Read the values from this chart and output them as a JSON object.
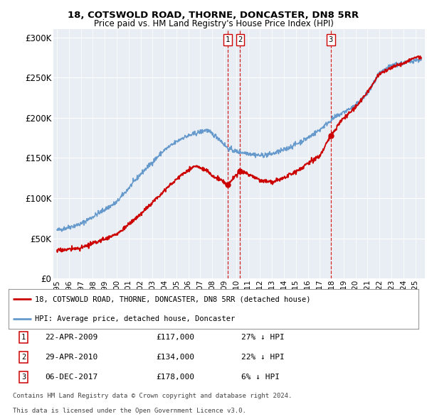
{
  "title": "18, COTSWOLD ROAD, THORNE, DONCASTER, DN8 5RR",
  "subtitle": "Price paid vs. HM Land Registry's House Price Index (HPI)",
  "ylabel_ticks": [
    "£0",
    "£50K",
    "£100K",
    "£150K",
    "£200K",
    "£250K",
    "£300K"
  ],
  "ytick_values": [
    0,
    50000,
    100000,
    150000,
    200000,
    250000,
    300000
  ],
  "ylim": [
    0,
    310000
  ],
  "xlim_start": 1994.7,
  "xlim_end": 2025.8,
  "transactions": [
    {
      "num": 1,
      "date": "22-APR-2009",
      "price": 117000,
      "year": 2009.31,
      "pct": "27%",
      "dir": "↓"
    },
    {
      "num": 2,
      "date": "29-APR-2010",
      "price": 134000,
      "year": 2010.33,
      "pct": "22%",
      "dir": "↓"
    },
    {
      "num": 3,
      "date": "06-DEC-2017",
      "price": 178000,
      "year": 2017.93,
      "pct": "6%",
      "dir": "↓"
    }
  ],
  "legend_house": "18, COTSWOLD ROAD, THORNE, DONCASTER, DN8 5RR (detached house)",
  "legend_hpi": "HPI: Average price, detached house, Doncaster",
  "footer1": "Contains HM Land Registry data © Crown copyright and database right 2024.",
  "footer2": "This data is licensed under the Open Government Licence v3.0.",
  "house_color": "#cc0000",
  "hpi_color": "#6699cc",
  "background_chart": "#e8eef4",
  "background_fig": "#ffffff",
  "grid_color": "#ffffff"
}
